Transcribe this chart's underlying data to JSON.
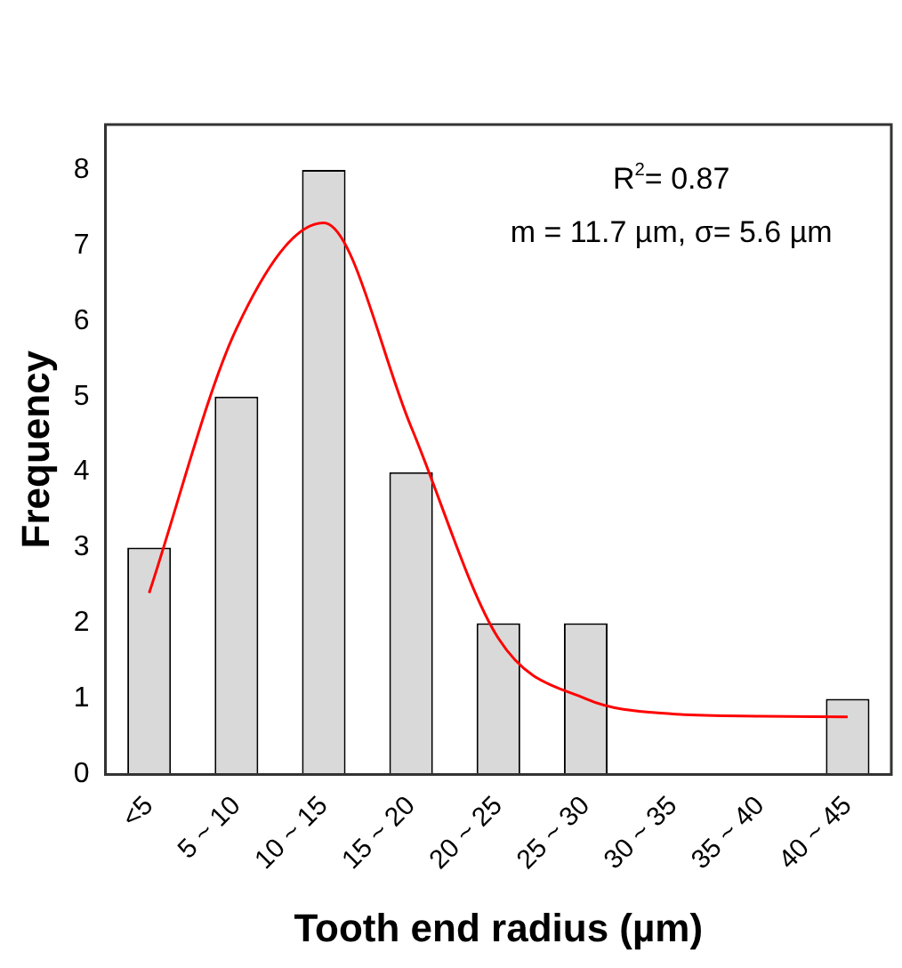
{
  "chart_data": {
    "type": "bar",
    "xlabel": "Tooth end radius (µm)",
    "ylabel": "Frequency",
    "categories": [
      "<5",
      "5 ~ 10",
      "10 ~ 15",
      "15 ~ 20",
      "20 ~ 25",
      "25 ~ 30",
      "30 ~ 35",
      "35 ~ 40",
      "40 ~ 45"
    ],
    "series": [
      {
        "type": "bar",
        "color": "#d9d9d9",
        "values": [
          3,
          5,
          8,
          4,
          2,
          2,
          0,
          0,
          1
        ]
      },
      {
        "type": "line",
        "color": "#ff0000",
        "values": [
          2.4,
          5.9,
          7.3,
          4.6,
          1.8,
          1.0,
          0.8,
          0.77,
          0.76
        ]
      }
    ],
    "ylim": [
      0,
      8.6
    ],
    "yticks": [
      0,
      1,
      2,
      3,
      4,
      5,
      6,
      7,
      8
    ],
    "grid": false,
    "legend": false,
    "marker": "none",
    "annotations": [
      "R$^{2}$= 0.87",
      "m = 11.7 µm, σ= 5.6 µm"
    ]
  }
}
